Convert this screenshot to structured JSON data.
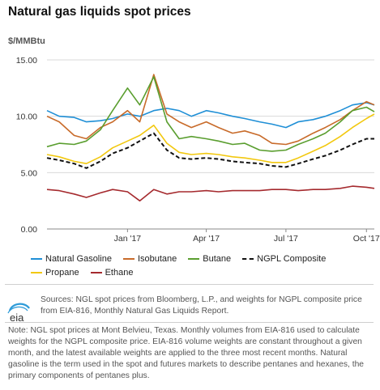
{
  "title": "Natural gas liquids spot prices",
  "unit_label": "$/MMBtu",
  "chart_data": {
    "type": "line",
    "title": "Natural gas liquids spot prices",
    "ylabel": "$/MMBtu",
    "ylim": [
      0,
      15
    ],
    "yticks": [
      "0.00",
      "5.00",
      "10.00",
      "15.00"
    ],
    "xlim": [
      "2016-10-01",
      "2017-10-10"
    ],
    "xticks": [
      {
        "date": "2017-01-01",
        "label": "Jan '17"
      },
      {
        "date": "2017-04-01",
        "label": "Apr '17"
      },
      {
        "date": "2017-07-01",
        "label": "Jul '17"
      },
      {
        "date": "2017-10-01",
        "label": "Oct '17"
      }
    ],
    "grid": "horizontal",
    "legend": "bottom",
    "series": [
      {
        "name": "Natural Gasoline",
        "color": "#1f8fd6",
        "dash": "",
        "points": [
          [
            "2016-10-01",
            10.5
          ],
          [
            "2016-10-15",
            10.0
          ],
          [
            "2016-11-01",
            9.9
          ],
          [
            "2016-11-15",
            9.5
          ],
          [
            "2016-12-01",
            9.6
          ],
          [
            "2016-12-15",
            9.8
          ],
          [
            "2017-01-01",
            10.2
          ],
          [
            "2017-01-15",
            10.0
          ],
          [
            "2017-01-31",
            10.5
          ],
          [
            "2017-02-15",
            10.7
          ],
          [
            "2017-03-01",
            10.5
          ],
          [
            "2017-03-15",
            10.0
          ],
          [
            "2017-04-01",
            10.5
          ],
          [
            "2017-04-15",
            10.3
          ],
          [
            "2017-05-01",
            10.0
          ],
          [
            "2017-05-15",
            9.8
          ],
          [
            "2017-06-01",
            9.5
          ],
          [
            "2017-06-15",
            9.3
          ],
          [
            "2017-07-01",
            9.0
          ],
          [
            "2017-07-15",
            9.5
          ],
          [
            "2017-08-01",
            9.7
          ],
          [
            "2017-08-15",
            10.0
          ],
          [
            "2017-09-01",
            10.5
          ],
          [
            "2017-09-15",
            11.0
          ],
          [
            "2017-10-01",
            11.2
          ],
          [
            "2017-10-10",
            11.0
          ]
        ]
      },
      {
        "name": "Isobutane",
        "color": "#c86b2a",
        "dash": "",
        "points": [
          [
            "2016-10-01",
            10.0
          ],
          [
            "2016-10-15",
            9.5
          ],
          [
            "2016-11-01",
            8.3
          ],
          [
            "2016-11-15",
            8.0
          ],
          [
            "2016-12-01",
            9.0
          ],
          [
            "2016-12-15",
            9.5
          ],
          [
            "2017-01-01",
            10.5
          ],
          [
            "2017-01-15",
            9.5
          ],
          [
            "2017-01-31",
            13.7
          ],
          [
            "2017-02-15",
            10.2
          ],
          [
            "2017-03-01",
            9.5
          ],
          [
            "2017-03-15",
            9.0
          ],
          [
            "2017-04-01",
            9.5
          ],
          [
            "2017-04-15",
            9.0
          ],
          [
            "2017-05-01",
            8.5
          ],
          [
            "2017-05-15",
            8.7
          ],
          [
            "2017-06-01",
            8.3
          ],
          [
            "2017-06-15",
            7.6
          ],
          [
            "2017-07-01",
            7.5
          ],
          [
            "2017-07-15",
            7.8
          ],
          [
            "2017-08-01",
            8.5
          ],
          [
            "2017-08-15",
            9.0
          ],
          [
            "2017-09-01",
            9.7
          ],
          [
            "2017-09-15",
            10.5
          ],
          [
            "2017-10-01",
            11.3
          ],
          [
            "2017-10-10",
            11.0
          ]
        ]
      },
      {
        "name": "Butane",
        "color": "#5a9e2f",
        "dash": "",
        "points": [
          [
            "2016-10-01",
            7.3
          ],
          [
            "2016-10-15",
            7.6
          ],
          [
            "2016-11-01",
            7.5
          ],
          [
            "2016-11-15",
            7.8
          ],
          [
            "2016-12-01",
            8.8
          ],
          [
            "2016-12-15",
            10.5
          ],
          [
            "2017-01-01",
            12.5
          ],
          [
            "2017-01-15",
            11.0
          ],
          [
            "2017-01-31",
            13.5
          ],
          [
            "2017-02-15",
            9.5
          ],
          [
            "2017-03-01",
            8.0
          ],
          [
            "2017-03-15",
            8.2
          ],
          [
            "2017-04-01",
            8.0
          ],
          [
            "2017-04-15",
            7.8
          ],
          [
            "2017-05-01",
            7.5
          ],
          [
            "2017-05-15",
            7.6
          ],
          [
            "2017-06-01",
            7.0
          ],
          [
            "2017-06-15",
            6.9
          ],
          [
            "2017-07-01",
            7.0
          ],
          [
            "2017-07-15",
            7.5
          ],
          [
            "2017-08-01",
            8.0
          ],
          [
            "2017-08-15",
            8.5
          ],
          [
            "2017-09-01",
            9.5
          ],
          [
            "2017-09-15",
            10.5
          ],
          [
            "2017-10-01",
            10.8
          ],
          [
            "2017-10-10",
            10.4
          ]
        ]
      },
      {
        "name": "NGPL Composite",
        "color": "#111111",
        "dash": "5,3",
        "points": [
          [
            "2016-10-01",
            6.3
          ],
          [
            "2016-10-15",
            6.1
          ],
          [
            "2016-11-01",
            5.8
          ],
          [
            "2016-11-15",
            5.4
          ],
          [
            "2016-12-01",
            6.0
          ],
          [
            "2016-12-15",
            6.7
          ],
          [
            "2017-01-01",
            7.2
          ],
          [
            "2017-01-15",
            7.8
          ],
          [
            "2017-01-31",
            8.5
          ],
          [
            "2017-02-15",
            7.0
          ],
          [
            "2017-03-01",
            6.3
          ],
          [
            "2017-03-15",
            6.2
          ],
          [
            "2017-04-01",
            6.3
          ],
          [
            "2017-04-15",
            6.2
          ],
          [
            "2017-05-01",
            6.0
          ],
          [
            "2017-05-15",
            5.9
          ],
          [
            "2017-06-01",
            5.8
          ],
          [
            "2017-06-15",
            5.6
          ],
          [
            "2017-07-01",
            5.5
          ],
          [
            "2017-07-15",
            5.8
          ],
          [
            "2017-08-01",
            6.2
          ],
          [
            "2017-08-15",
            6.5
          ],
          [
            "2017-09-01",
            7.0
          ],
          [
            "2017-09-15",
            7.5
          ],
          [
            "2017-10-01",
            8.0
          ],
          [
            "2017-10-10",
            8.0
          ]
        ]
      },
      {
        "name": "Propane",
        "color": "#f2c80f",
        "dash": "",
        "points": [
          [
            "2016-10-01",
            6.6
          ],
          [
            "2016-10-15",
            6.4
          ],
          [
            "2016-11-01",
            6.0
          ],
          [
            "2016-11-15",
            5.8
          ],
          [
            "2016-12-01",
            6.4
          ],
          [
            "2016-12-15",
            7.2
          ],
          [
            "2017-01-01",
            7.8
          ],
          [
            "2017-01-15",
            8.3
          ],
          [
            "2017-01-31",
            9.2
          ],
          [
            "2017-02-15",
            7.6
          ],
          [
            "2017-03-01",
            6.8
          ],
          [
            "2017-03-15",
            6.6
          ],
          [
            "2017-04-01",
            6.7
          ],
          [
            "2017-04-15",
            6.6
          ],
          [
            "2017-05-01",
            6.4
          ],
          [
            "2017-05-15",
            6.3
          ],
          [
            "2017-06-01",
            6.1
          ],
          [
            "2017-06-15",
            5.9
          ],
          [
            "2017-07-01",
            5.9
          ],
          [
            "2017-07-15",
            6.3
          ],
          [
            "2017-08-01",
            6.9
          ],
          [
            "2017-08-15",
            7.4
          ],
          [
            "2017-09-01",
            8.2
          ],
          [
            "2017-09-15",
            9.0
          ],
          [
            "2017-10-01",
            9.8
          ],
          [
            "2017-10-10",
            10.2
          ]
        ]
      },
      {
        "name": "Ethane",
        "color": "#a52a2e",
        "dash": "",
        "points": [
          [
            "2016-10-01",
            3.5
          ],
          [
            "2016-10-15",
            3.4
          ],
          [
            "2016-11-01",
            3.1
          ],
          [
            "2016-11-15",
            2.8
          ],
          [
            "2016-12-01",
            3.2
          ],
          [
            "2016-12-15",
            3.5
          ],
          [
            "2017-01-01",
            3.3
          ],
          [
            "2017-01-15",
            2.5
          ],
          [
            "2017-01-31",
            3.5
          ],
          [
            "2017-02-15",
            3.1
          ],
          [
            "2017-03-01",
            3.3
          ],
          [
            "2017-03-15",
            3.3
          ],
          [
            "2017-04-01",
            3.4
          ],
          [
            "2017-04-15",
            3.3
          ],
          [
            "2017-05-01",
            3.4
          ],
          [
            "2017-05-15",
            3.4
          ],
          [
            "2017-06-01",
            3.4
          ],
          [
            "2017-06-15",
            3.5
          ],
          [
            "2017-07-01",
            3.5
          ],
          [
            "2017-07-15",
            3.4
          ],
          [
            "2017-08-01",
            3.5
          ],
          [
            "2017-08-15",
            3.5
          ],
          [
            "2017-09-01",
            3.6
          ],
          [
            "2017-09-15",
            3.8
          ],
          [
            "2017-10-01",
            3.7
          ],
          [
            "2017-10-10",
            3.6
          ]
        ]
      }
    ]
  },
  "legend_rows": [
    [
      "Natural Gasoline",
      "Isobutane",
      "Butane",
      "NGPL Composite"
    ],
    [
      "Propane",
      "Ethane"
    ]
  ],
  "logo_text": "eia",
  "sources": "Sources: NGL spot prices from Bloomberg, L.P., and weights for NGPL composite price from EIA-816, Monthly Natural Gas Liquids Report.",
  "note": "Note: NGL spot prices at Mont Belvieu, Texas. Monthly volumes from EIA-816 used to calculate weights for the NGPL composite price. EIA-816 volume weights are constant throughout a given month, and the latest available weights are applied to the three most recent months. Natural gasoline is the term used in the spot and futures markets to describe pentanes and hexanes, the primary components of pentanes plus."
}
